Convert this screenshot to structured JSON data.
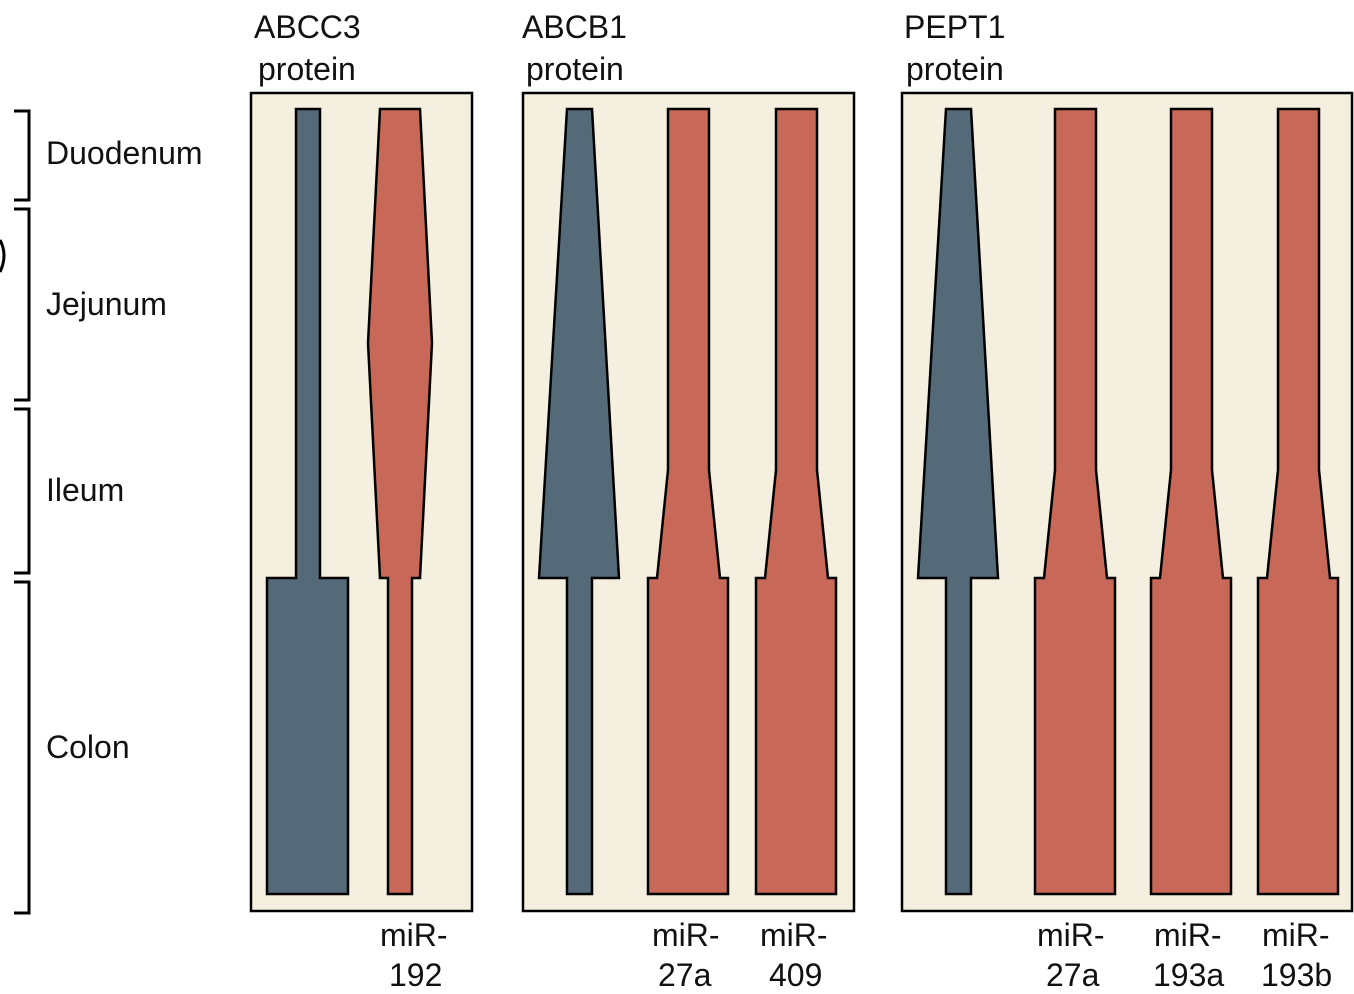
{
  "colors": {
    "protein": "#556a78",
    "mirna": "#c76858",
    "panel_background": "#f4efdf"
  },
  "regions": [
    {
      "id": "duodenum",
      "label": "Duodenum"
    },
    {
      "id": "jejunum",
      "label": "Jejunum"
    },
    {
      "id": "ileum",
      "label": "Ileum"
    },
    {
      "id": "colon",
      "label": "Colon"
    }
  ],
  "panels": [
    {
      "id": "abcc3",
      "title_line1": "ABCC3",
      "title_line2": "protein",
      "mirnas": [
        {
          "line1": "miR-",
          "line2": "192"
        }
      ]
    },
    {
      "id": "abcb1",
      "title_line1": "ABCB1",
      "title_line2": "protein",
      "mirnas": [
        {
          "line1": "miR-",
          "line2": "27a"
        },
        {
          "line1": "miR-",
          "line2": "409"
        }
      ]
    },
    {
      "id": "pept1",
      "title_line1": "PEPT1",
      "title_line2": "protein",
      "mirnas": [
        {
          "line1": "miR-",
          "line2": "27a"
        },
        {
          "line1": "miR-",
          "line2": "193a"
        },
        {
          "line1": "miR-",
          "line2": "193b"
        }
      ]
    }
  ]
}
